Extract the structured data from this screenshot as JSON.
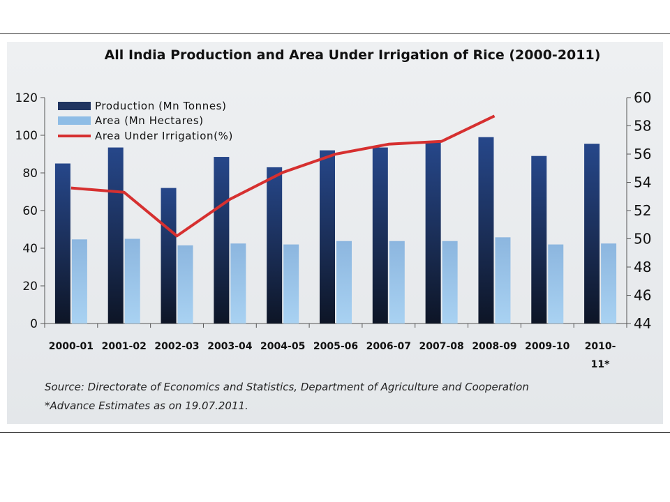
{
  "chart_data": {
    "type": "bar",
    "title": "All India Production and Area Under Irrigation of Rice (2000-2011)",
    "categories": [
      "2000-01",
      "2001-02",
      "2002-03",
      "2003-04",
      "2004-05",
      "2005-06",
      "2006-07",
      "2007-08",
      "2008-09",
      "2009-10",
      "2010-11*"
    ],
    "category_labels": [
      [
        "2000-01"
      ],
      [
        "2001-02"
      ],
      [
        "2002-03"
      ],
      [
        "2003-04"
      ],
      [
        "2004-05"
      ],
      [
        "2005-06"
      ],
      [
        "2006-07"
      ],
      [
        "2007-08"
      ],
      [
        "2008-09"
      ],
      [
        "2009-10"
      ],
      [
        "2010-",
        "11*"
      ]
    ],
    "series": [
      {
        "name": "Production (Mn Tonnes)",
        "type": "bar",
        "axis": "left",
        "color": "#1f3c78",
        "values": [
          85,
          93.5,
          72,
          88.5,
          83,
          92,
          93.5,
          96.5,
          99,
          89,
          95.5
        ]
      },
      {
        "name": "Area (Mn Hectares)",
        "type": "bar",
        "axis": "left",
        "color": "#8fbde6",
        "values": [
          44.7,
          45,
          41.5,
          42.5,
          42,
          43.8,
          43.8,
          43.8,
          45.8,
          42,
          42.5
        ]
      },
      {
        "name": "Area Under Irrigation(%)",
        "type": "line",
        "axis": "right",
        "color": "#d63030",
        "values": [
          53.6,
          53.3,
          50.2,
          52.8,
          54.7,
          56.0,
          56.7,
          56.9,
          58.7,
          null,
          null
        ]
      }
    ],
    "y_left": {
      "lim": [
        0,
        120
      ],
      "ticks": [
        0,
        20,
        40,
        60,
        80,
        100,
        120
      ]
    },
    "y_right": {
      "lim": [
        44,
        60
      ],
      "ticks": [
        44,
        46,
        48,
        50,
        52,
        54,
        56,
        58,
        60
      ]
    },
    "legend_position": "top-left",
    "grid": false
  },
  "notes": {
    "source": "Source: Directorate of Economics and Statistics, Department of Agriculture and Cooperation",
    "advance": "*Advance Estimates as on  19.07.2011."
  }
}
